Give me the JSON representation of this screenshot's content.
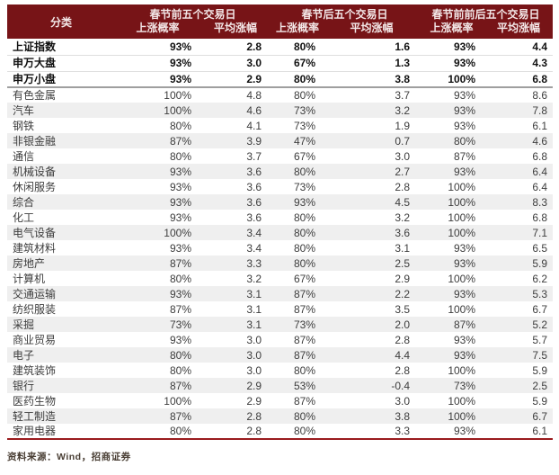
{
  "chart_data": {
    "type": "table",
    "category_header": "分类",
    "column_groups": [
      "春节前五个交易日",
      "春节后五个交易日",
      "春节前前后五个交易日"
    ],
    "sub_headers": [
      "上涨概率",
      "平均涨幅"
    ],
    "index_rows": [
      {
        "name": "上证指数",
        "values": [
          "93%",
          "2.8",
          "80%",
          "1.6",
          "93%",
          "4.4"
        ]
      },
      {
        "name": "申万大盘",
        "values": [
          "93%",
          "3.0",
          "67%",
          "1.3",
          "93%",
          "4.3"
        ]
      },
      {
        "name": "申万小盘",
        "values": [
          "93%",
          "2.9",
          "80%",
          "3.8",
          "100%",
          "6.8"
        ]
      }
    ],
    "industry_rows": [
      {
        "name": "有色金属",
        "values": [
          "100%",
          "4.8",
          "80%",
          "3.7",
          "93%",
          "8.6"
        ]
      },
      {
        "name": "汽车",
        "values": [
          "100%",
          "4.6",
          "73%",
          "3.2",
          "93%",
          "7.8"
        ]
      },
      {
        "name": "钢铁",
        "values": [
          "80%",
          "4.1",
          "73%",
          "1.9",
          "93%",
          "6.1"
        ]
      },
      {
        "name": "非银金融",
        "values": [
          "87%",
          "3.9",
          "47%",
          "0.7",
          "80%",
          "4.6"
        ]
      },
      {
        "name": "通信",
        "values": [
          "80%",
          "3.7",
          "67%",
          "3.0",
          "87%",
          "6.8"
        ]
      },
      {
        "name": "机械设备",
        "values": [
          "93%",
          "3.6",
          "80%",
          "2.7",
          "93%",
          "6.4"
        ]
      },
      {
        "name": "休闲服务",
        "values": [
          "93%",
          "3.6",
          "73%",
          "2.8",
          "100%",
          "6.4"
        ]
      },
      {
        "name": "综合",
        "values": [
          "93%",
          "3.6",
          "93%",
          "4.5",
          "100%",
          "8.3"
        ]
      },
      {
        "name": "化工",
        "values": [
          "93%",
          "3.6",
          "80%",
          "3.2",
          "100%",
          "6.8"
        ]
      },
      {
        "name": "电气设备",
        "values": [
          "100%",
          "3.4",
          "80%",
          "3.6",
          "100%",
          "7.1"
        ]
      },
      {
        "name": "建筑材料",
        "values": [
          "93%",
          "3.4",
          "80%",
          "3.1",
          "93%",
          "6.5"
        ]
      },
      {
        "name": "房地产",
        "values": [
          "87%",
          "3.3",
          "80%",
          "2.5",
          "93%",
          "5.9"
        ]
      },
      {
        "name": "计算机",
        "values": [
          "80%",
          "3.2",
          "67%",
          "2.9",
          "100%",
          "6.2"
        ]
      },
      {
        "name": "交通运输",
        "values": [
          "93%",
          "3.1",
          "87%",
          "2.2",
          "93%",
          "5.3"
        ]
      },
      {
        "name": "纺织服装",
        "values": [
          "87%",
          "3.1",
          "87%",
          "3.5",
          "100%",
          "6.7"
        ]
      },
      {
        "name": "采掘",
        "values": [
          "73%",
          "3.1",
          "73%",
          "2.0",
          "87%",
          "5.2"
        ]
      },
      {
        "name": "商业贸易",
        "values": [
          "93%",
          "3.0",
          "87%",
          "2.8",
          "93%",
          "5.7"
        ]
      },
      {
        "name": "电子",
        "values": [
          "80%",
          "3.0",
          "87%",
          "4.4",
          "93%",
          "7.5"
        ]
      },
      {
        "name": "建筑装饰",
        "values": [
          "80%",
          "3.0",
          "80%",
          "2.8",
          "100%",
          "5.9"
        ]
      },
      {
        "name": "银行",
        "values": [
          "87%",
          "2.9",
          "53%",
          "-0.4",
          "73%",
          "2.5"
        ]
      },
      {
        "name": "医药生物",
        "values": [
          "100%",
          "2.9",
          "87%",
          "3.0",
          "100%",
          "5.9"
        ]
      },
      {
        "name": "轻工制造",
        "values": [
          "87%",
          "2.8",
          "80%",
          "3.8",
          "100%",
          "6.7"
        ]
      },
      {
        "name": "家用电器",
        "values": [
          "80%",
          "2.8",
          "80%",
          "3.3",
          "93%",
          "6.1"
        ]
      }
    ]
  },
  "footer": {
    "source": "资料来源：Wind，招商证券"
  },
  "colors": {
    "header_bg": "#771417",
    "header_text": "#f3e7e7",
    "stripe": "#efefef",
    "index_divider": "#9f9f9f",
    "bottom_accent_line": "#9a1b1e"
  }
}
